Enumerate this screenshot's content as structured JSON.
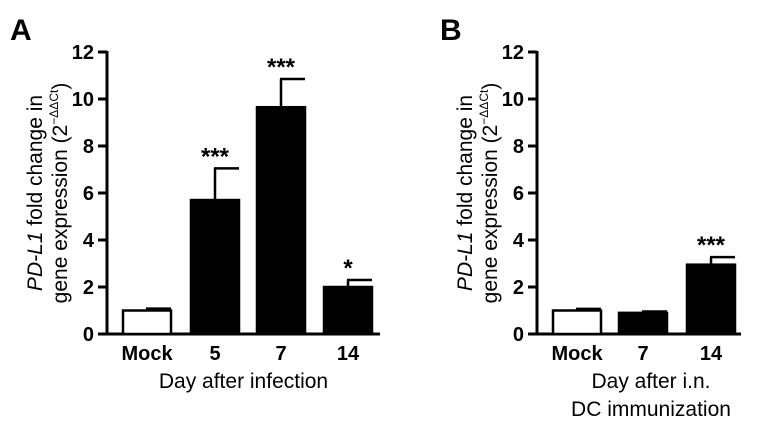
{
  "chart_data": [
    {
      "panel": "A",
      "type": "bar",
      "categories": [
        "Mock",
        "5",
        "7",
        "14"
      ],
      "values": [
        1.0,
        5.7,
        9.65,
        2.0
      ],
      "errors": [
        0.08,
        1.35,
        1.2,
        0.3
      ],
      "significance": [
        "",
        "***",
        "***",
        "*"
      ],
      "fills": [
        "#ffffff",
        "#000000",
        "#000000",
        "#000000"
      ],
      "ylabel_main": "PD-L1",
      "ylabel_rest": " fold change in",
      "ylabel_line2": "gene expression (2",
      "ylabel_exp": "−ΔΔCt",
      "ylabel_close": ")",
      "xlabel": [
        "Day after infection"
      ],
      "ylim": [
        0,
        12
      ],
      "yticks": [
        0,
        2,
        4,
        6,
        8,
        10,
        12
      ]
    },
    {
      "panel": "B",
      "type": "bar",
      "categories": [
        "Mock",
        "7",
        "14"
      ],
      "values": [
        1.0,
        0.9,
        2.95
      ],
      "errors": [
        0.07,
        0.06,
        0.32
      ],
      "significance": [
        "",
        "",
        "***"
      ],
      "fills": [
        "#ffffff",
        "#000000",
        "#000000"
      ],
      "ylabel_main": "PD-L1",
      "ylabel_rest": " fold change in",
      "ylabel_line2": "gene expression (2",
      "ylabel_exp": "−ΔΔCt",
      "ylabel_close": ")",
      "xlabel": [
        "Day after i.n.",
        "DC immunization"
      ],
      "ylim": [
        0,
        12
      ],
      "yticks": [
        0,
        2,
        4,
        6,
        8,
        10,
        12
      ]
    }
  ]
}
